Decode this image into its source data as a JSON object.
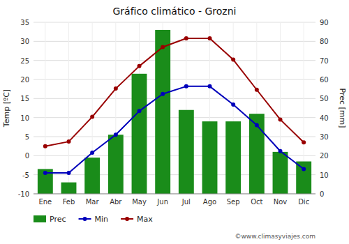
{
  "chart_data": {
    "type": "bar",
    "title": "Gráfico climático - Grozni",
    "categories": [
      "Ene",
      "Feb",
      "Mar",
      "Abr",
      "May",
      "Jun",
      "Jul",
      "Ago",
      "Sep",
      "Oct",
      "Nov",
      "Dic"
    ],
    "series": [
      {
        "name": "Prec",
        "type": "bar",
        "axis": "y2",
        "color": "#1a8c1a",
        "values": [
          13,
          6,
          19,
          31,
          63,
          86,
          44,
          38,
          38,
          42,
          22,
          17
        ]
      },
      {
        "name": "Min",
        "type": "line",
        "color": "#0000bb",
        "marker": "circle",
        "values": [
          -4.5,
          -4.5,
          0.8,
          5.5,
          11.7,
          16.2,
          18.2,
          18.2,
          13.4,
          8.0,
          1.2,
          -3.5
        ]
      },
      {
        "name": "Max",
        "type": "line",
        "color": "#990000",
        "marker": "circle",
        "values": [
          2.5,
          3.7,
          10.2,
          17.6,
          23.5,
          28.5,
          30.8,
          30.8,
          25.2,
          17.3,
          9.5,
          3.5
        ]
      }
    ],
    "ylabel": "Temp [ºC]",
    "y2label": "Prec [mm]",
    "ylim": [
      -10,
      35
    ],
    "yticks": [
      -10,
      -5,
      0,
      5,
      10,
      15,
      20,
      25,
      30,
      35
    ],
    "y2lim": [
      0,
      90
    ],
    "y2ticks": [
      0,
      10,
      20,
      30,
      40,
      50,
      60,
      70,
      80,
      90
    ],
    "grid": true,
    "legend": "bottom",
    "annotations": [
      "©www.climasyviajes.com"
    ]
  }
}
